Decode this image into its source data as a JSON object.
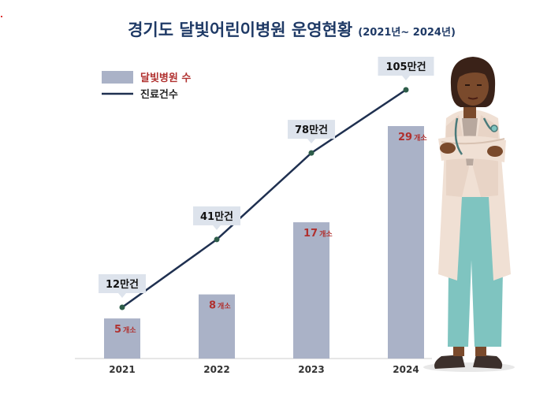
{
  "chart_data": {
    "type": "bar",
    "title": "경기도 달빛어린이병원 운영현황",
    "subtitle": "(2021년~ 2024년)",
    "categories": [
      "2021",
      "2022",
      "2023",
      "2024"
    ],
    "series": [
      {
        "name": "달빛병원 수",
        "type": "bar",
        "values": [
          5,
          8,
          17,
          29
        ],
        "labels": [
          {
            "num": "5",
            "unit": "개소"
          },
          {
            "num": "8",
            "unit": "개소"
          },
          {
            "num": "17",
            "unit": "개소"
          },
          {
            "num": "29",
            "unit": "개소"
          }
        ]
      },
      {
        "name": "진료건수",
        "type": "line",
        "values": [
          12,
          41,
          78,
          105
        ],
        "labels": [
          "12만건",
          "41만건",
          "78만건",
          "105만건"
        ]
      }
    ],
    "legend_position": "top-left",
    "grid": false
  },
  "colors": {
    "title": "#1f3a66",
    "bar": "#aab2c7",
    "bar_label": "#b0302e",
    "line": "#1f3050",
    "point": "#2e5d4a",
    "callout_bg": "#dde3ec",
    "axis": "#cccccc"
  },
  "decorations": {
    "illustration": "doctor-illustration"
  }
}
